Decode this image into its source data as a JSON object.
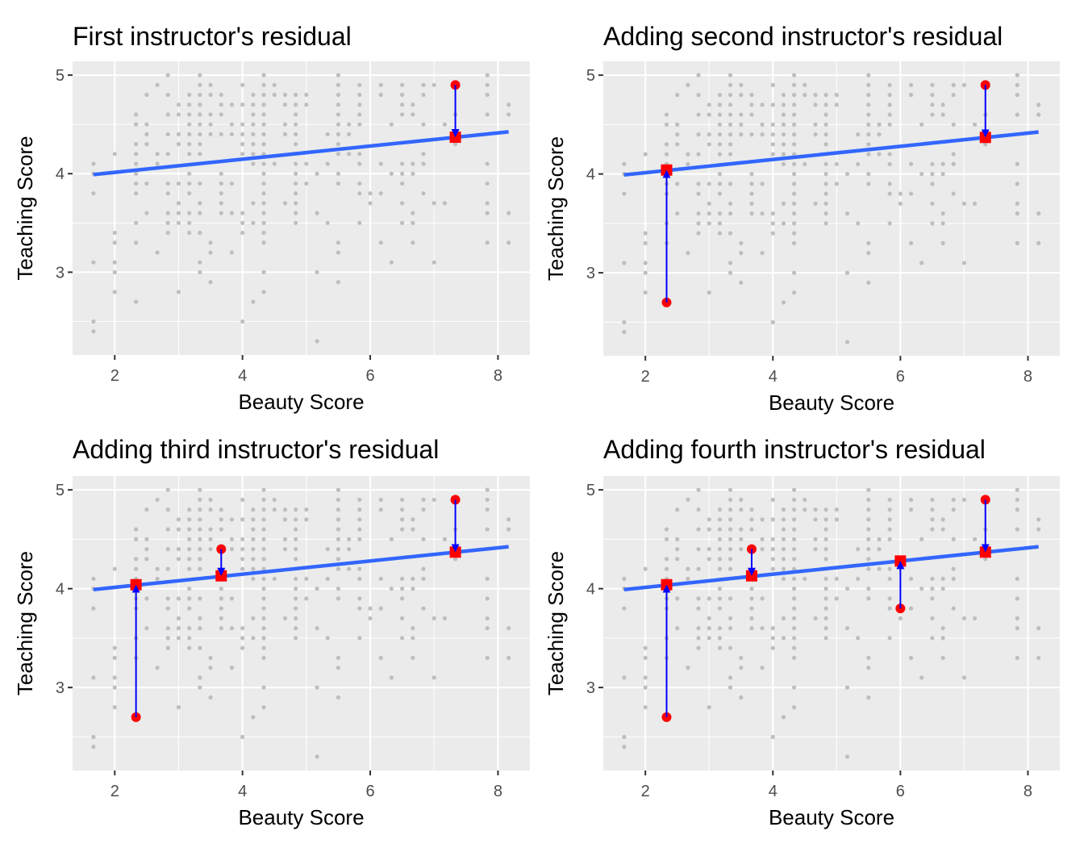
{
  "figure": {
    "description": "Four-panel ggplot showing instructor residuals from a regression of teaching score on beauty score"
  },
  "colors": {
    "panel_background": "#EBEBEB",
    "grid_major": "#FFFFFF",
    "grid_minor": "#F5F5F5",
    "points": "#BEBEBE",
    "regression_line": "#3366FF",
    "observed_marker": "#FF0000",
    "fitted_marker": "#FF0000",
    "residual_arrow": "#0000FF",
    "tick_label": "#4D4D4D",
    "axis_title": "#000000"
  },
  "chart_data": {
    "type": "scatter",
    "xlabel": "Beauty Score",
    "ylabel": "Teaching Score",
    "xlim": [
      1.34,
      8.5
    ],
    "ylim": [
      2.16,
      5.14
    ],
    "x_ticks": [
      2,
      4,
      6,
      8
    ],
    "x_tick_labels": [
      "2",
      "4",
      "6",
      "8"
    ],
    "y_ticks": [
      3,
      4,
      5
    ],
    "y_tick_labels": [
      "3",
      "4",
      "5"
    ],
    "x_minor": [
      3,
      5,
      7
    ],
    "y_minor": [
      2.5,
      3.5,
      4.5
    ],
    "grid": true,
    "legend": "none",
    "regression": {
      "intercept": 3.88,
      "slope": 0.0667,
      "x_range": [
        1.667,
        8.167
      ]
    },
    "scatter_columns": [
      {
        "x": 1.667,
        "y": [
          4.1,
          4.0,
          3.8,
          3.1,
          2.5,
          2.4
        ]
      },
      {
        "x": 2.0,
        "y": [
          4.2,
          3.4,
          3.3,
          3.1,
          3.0,
          2.8
        ]
      },
      {
        "x": 2.333,
        "y": [
          4.6,
          4.5,
          4.3,
          4.2,
          4.1,
          4.0,
          3.9,
          3.8,
          3.5,
          3.3,
          2.7
        ]
      },
      {
        "x": 2.5,
        "y": [
          4.8,
          4.5,
          4.4,
          4.3,
          3.9,
          3.6
        ]
      },
      {
        "x": 2.667,
        "y": [
          4.9,
          4.2,
          4.1,
          3.2
        ]
      },
      {
        "x": 2.833,
        "y": [
          5.0,
          4.8,
          4.6,
          4.4,
          4.2,
          3.9,
          3.8,
          3.6,
          3.5,
          3.4
        ]
      },
      {
        "x": 3.0,
        "y": [
          4.7,
          4.6,
          4.4,
          4.3,
          3.9,
          3.7,
          3.6,
          3.5,
          2.8
        ]
      },
      {
        "x": 3.167,
        "y": [
          4.8,
          4.7,
          4.6,
          4.5,
          4.4,
          4.3,
          4.2,
          4.0,
          3.9,
          3.8,
          3.6,
          3.5,
          3.4
        ]
      },
      {
        "x": 3.333,
        "y": [
          5.0,
          4.9,
          4.8,
          4.7,
          4.6,
          4.5,
          4.4,
          4.3,
          4.2,
          3.9,
          3.7,
          3.6,
          3.4,
          3.1,
          3.0
        ]
      },
      {
        "x": 3.5,
        "y": [
          4.9,
          4.8,
          4.6,
          4.5,
          4.4,
          3.3,
          3.2,
          2.9
        ]
      },
      {
        "x": 3.667,
        "y": [
          4.8,
          4.7,
          4.6,
          4.4,
          4.0,
          3.9,
          3.8,
          3.7,
          3.6
        ]
      },
      {
        "x": 3.833,
        "y": [
          4.7,
          4.5,
          4.4,
          3.9,
          3.6,
          3.2
        ]
      },
      {
        "x": 4.0,
        "y": [
          4.9,
          4.7,
          4.5,
          4.4,
          4.3,
          4.2,
          3.6,
          3.5,
          3.4,
          2.5
        ]
      },
      {
        "x": 4.167,
        "y": [
          4.8,
          4.7,
          4.6,
          4.5,
          4.4,
          4.3,
          4.2,
          4.1,
          3.7,
          3.5,
          2.7
        ]
      },
      {
        "x": 4.333,
        "y": [
          5.0,
          4.9,
          4.8,
          4.7,
          4.6,
          4.5,
          4.4,
          4.3,
          4.2,
          4.1,
          4.0,
          3.9,
          3.8,
          3.7,
          3.6,
          3.5,
          3.4,
          3.3,
          3.0,
          2.8
        ]
      },
      {
        "x": 4.5,
        "y": [
          4.9,
          4.8,
          4.1
        ]
      },
      {
        "x": 4.667,
        "y": [
          4.8,
          4.7,
          4.5,
          4.4,
          3.7
        ]
      },
      {
        "x": 4.833,
        "y": [
          4.8,
          4.7,
          4.6,
          4.5,
          4.4,
          4.3,
          4.1,
          4.0,
          3.9,
          3.8,
          3.7,
          3.6,
          3.5
        ]
      },
      {
        "x": 5.0,
        "y": [
          4.8,
          4.7,
          4.1,
          3.9
        ]
      },
      {
        "x": 5.167,
        "y": [
          4.0,
          3.6,
          3.0,
          2.3
        ]
      },
      {
        "x": 5.333,
        "y": [
          4.4,
          4.1,
          3.5
        ]
      },
      {
        "x": 5.5,
        "y": [
          5.0,
          4.9,
          4.8,
          4.7,
          4.6,
          4.5,
          4.4,
          4.3,
          4.2,
          4.0,
          3.9,
          3.3,
          3.2,
          2.9
        ]
      },
      {
        "x": 5.667,
        "y": [
          4.5,
          4.4,
          4.2
        ]
      },
      {
        "x": 5.833,
        "y": [
          4.9,
          4.8,
          4.7,
          4.6,
          4.5,
          4.2,
          4.1,
          3.9,
          3.8,
          3.5
        ]
      },
      {
        "x": 6.0,
        "y": [
          3.8,
          3.7
        ]
      },
      {
        "x": 6.167,
        "y": [
          4.9,
          4.8,
          4.1,
          3.8,
          3.3
        ]
      },
      {
        "x": 6.333,
        "y": [
          4.5,
          4.0,
          3.1
        ]
      },
      {
        "x": 6.5,
        "y": [
          4.9,
          4.8,
          4.7,
          4.6,
          4.1,
          4.0,
          3.9,
          3.7,
          3.5
        ]
      },
      {
        "x": 6.667,
        "y": [
          4.7,
          4.6,
          4.1,
          4.0,
          3.6,
          3.5,
          3.3
        ]
      },
      {
        "x": 6.833,
        "y": [
          4.9,
          4.8,
          4.5,
          4.2,
          4.1,
          3.8
        ]
      },
      {
        "x": 7.0,
        "y": [
          4.9,
          3.7,
          3.1
        ]
      },
      {
        "x": 7.167,
        "y": [
          4.5,
          3.7
        ]
      },
      {
        "x": 7.333,
        "y": [
          4.9,
          4.6,
          4.4,
          4.3
        ]
      },
      {
        "x": 7.833,
        "y": [
          5.0,
          4.9,
          4.8,
          4.6,
          4.1,
          3.9,
          3.7,
          3.6,
          3.3
        ]
      },
      {
        "x": 8.167,
        "y": [
          4.7,
          4.6,
          3.6,
          3.3
        ]
      }
    ],
    "residuals": [
      {
        "name": "first",
        "x": 7.333,
        "observed": 4.9,
        "fitted": 4.37
      },
      {
        "name": "second",
        "x": 2.333,
        "observed": 2.7,
        "fitted": 4.04
      },
      {
        "name": "third",
        "x": 3.667,
        "observed": 4.4,
        "fitted": 4.13
      },
      {
        "name": "fourth",
        "x": 6.0,
        "observed": 3.8,
        "fitted": 4.28
      }
    ],
    "panels": [
      {
        "title": "First instructor's residual",
        "residual_count": 1
      },
      {
        "title": "Adding second instructor's residual",
        "residual_count": 2
      },
      {
        "title": "Adding third instructor's residual",
        "residual_count": 3
      },
      {
        "title": "Adding fourth instructor's residual",
        "residual_count": 4
      }
    ]
  }
}
